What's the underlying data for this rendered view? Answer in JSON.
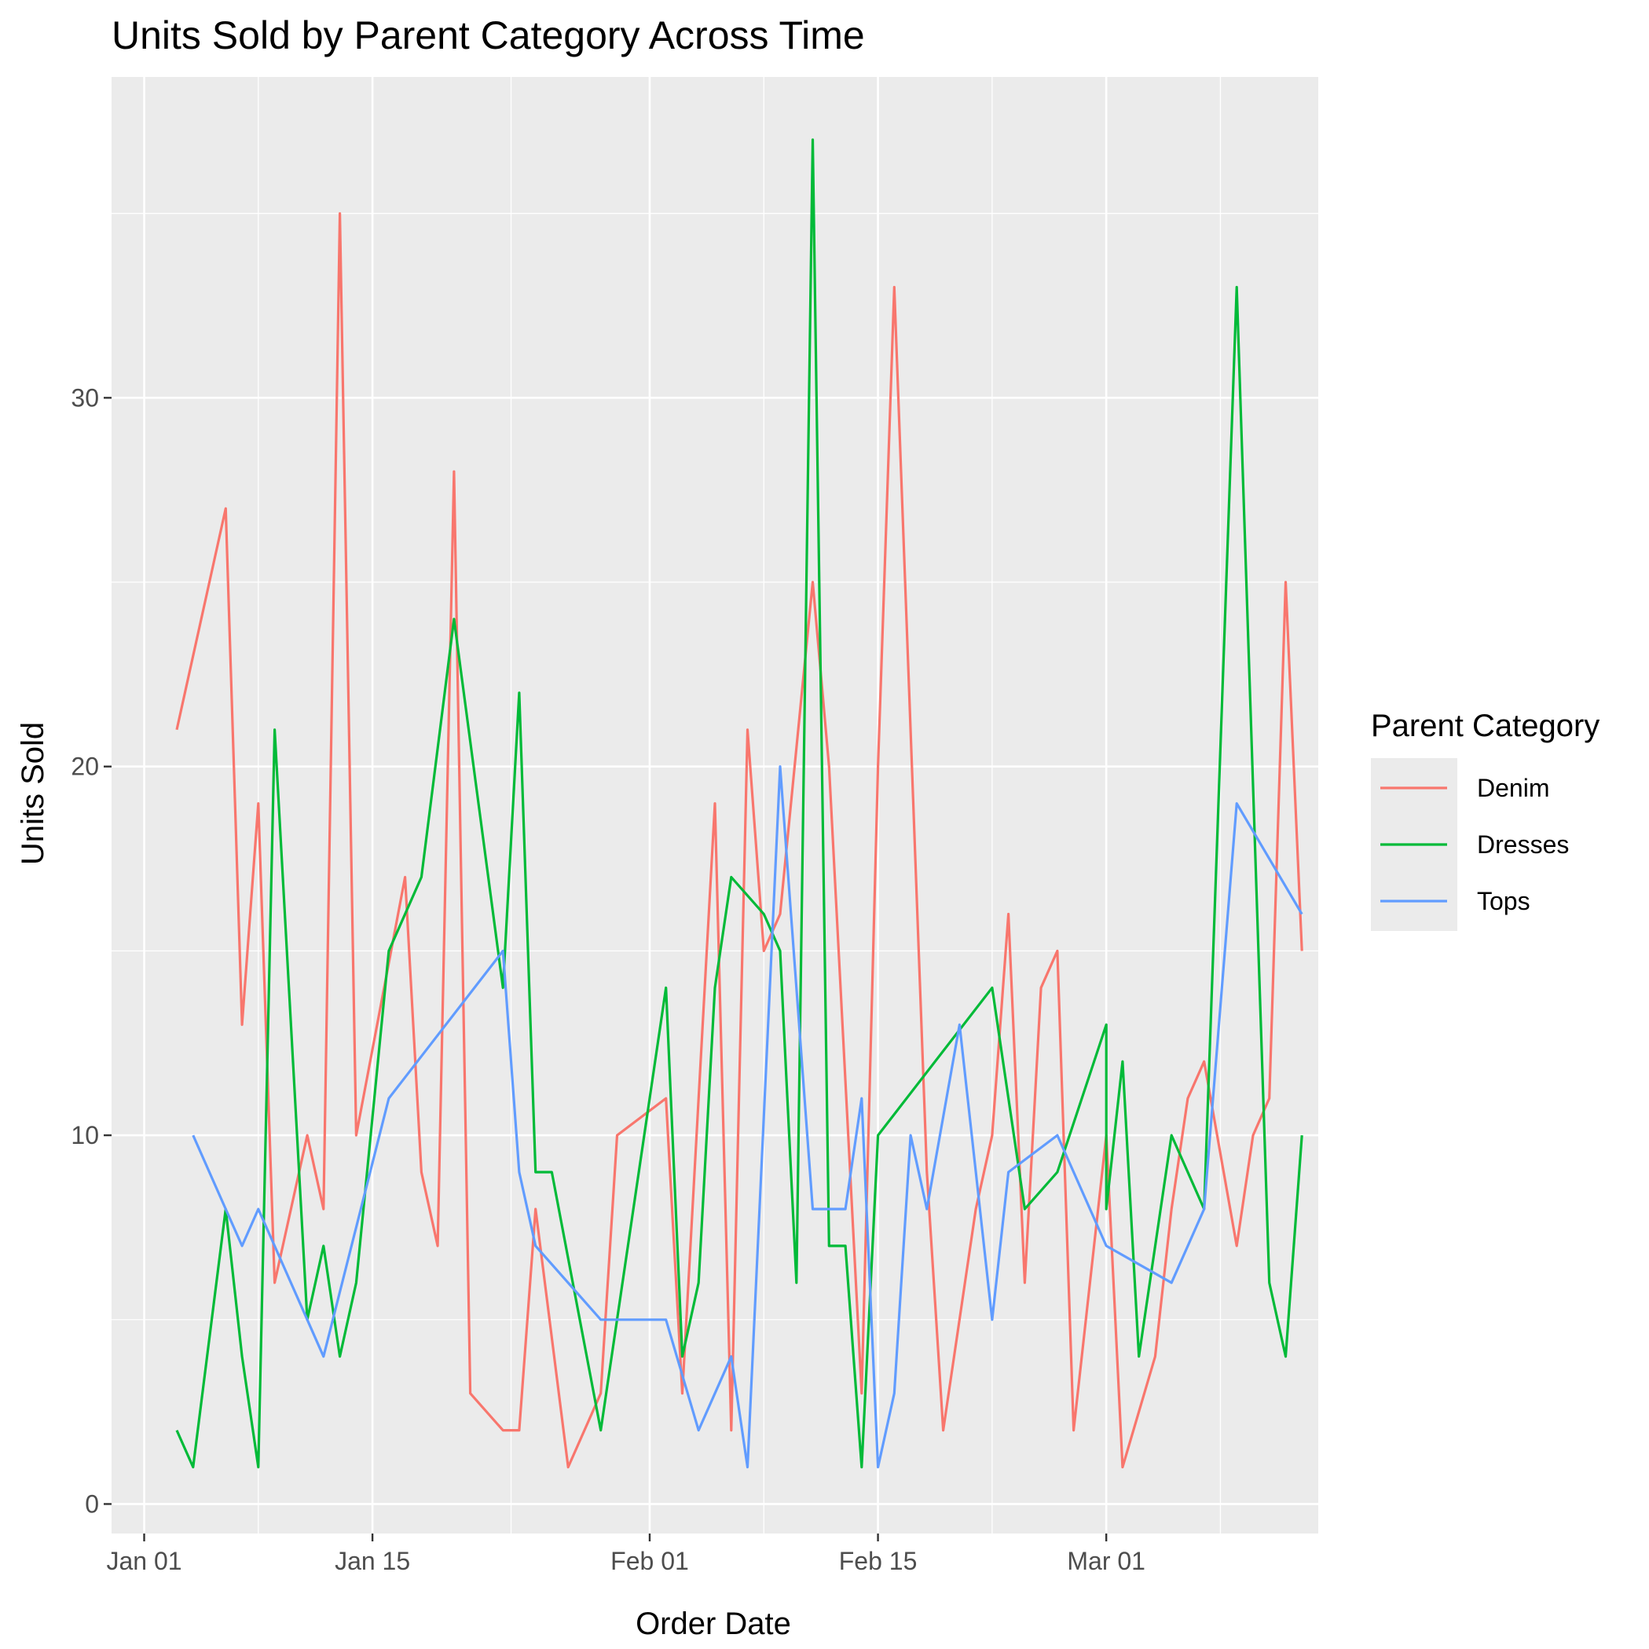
{
  "chart_data": {
    "type": "line",
    "title": "Units Sold by Parent Category Across Time",
    "xlabel": "Order Date",
    "ylabel": "Units Sold",
    "x_ticks": [
      {
        "date": "2023-01-01",
        "label": "Jan 01"
      },
      {
        "date": "2023-01-15",
        "label": "Jan 15"
      },
      {
        "date": "2023-02-01",
        "label": "Feb 01"
      },
      {
        "date": "2023-02-15",
        "label": "Feb 15"
      },
      {
        "date": "2023-03-01",
        "label": "Mar 01"
      }
    ],
    "y_ticks": [
      0,
      10,
      20,
      30
    ],
    "xlim": [
      "2022-12-30",
      "2023-03-14"
    ],
    "ylim": [
      -0.8,
      38.7
    ],
    "grid": true,
    "legend": {
      "title": "Parent Category",
      "position": "right"
    },
    "series": [
      {
        "name": "Denim",
        "color": "#F8766D",
        "points": [
          [
            "2023-01-03",
            21
          ],
          [
            "2023-01-06",
            27
          ],
          [
            "2023-01-07",
            13
          ],
          [
            "2023-01-08",
            19
          ],
          [
            "2023-01-09",
            6
          ],
          [
            "2023-01-11",
            10
          ],
          [
            "2023-01-12",
            8
          ],
          [
            "2023-01-13",
            35
          ],
          [
            "2023-01-14",
            10
          ],
          [
            "2023-01-17",
            17
          ],
          [
            "2023-01-18",
            9
          ],
          [
            "2023-01-19",
            7
          ],
          [
            "2023-01-20",
            28
          ],
          [
            "2023-01-21",
            3
          ],
          [
            "2023-01-23",
            2
          ],
          [
            "2023-01-24",
            2
          ],
          [
            "2023-01-25",
            8
          ],
          [
            "2023-01-27",
            1
          ],
          [
            "2023-01-29",
            3
          ],
          [
            "2023-01-30",
            10
          ],
          [
            "2023-02-02",
            11
          ],
          [
            "2023-02-03",
            3
          ],
          [
            "2023-02-05",
            19
          ],
          [
            "2023-02-06",
            2
          ],
          [
            "2023-02-07",
            21
          ],
          [
            "2023-02-08",
            15
          ],
          [
            "2023-02-09",
            16
          ],
          [
            "2023-02-11",
            25
          ],
          [
            "2023-02-12",
            20
          ],
          [
            "2023-02-14",
            3
          ],
          [
            "2023-02-15",
            20
          ],
          [
            "2023-02-16",
            33
          ],
          [
            "2023-02-18",
            9
          ],
          [
            "2023-02-19",
            2
          ],
          [
            "2023-02-21",
            8
          ],
          [
            "2023-02-22",
            10
          ],
          [
            "2023-02-23",
            16
          ],
          [
            "2023-02-24",
            6
          ],
          [
            "2023-02-25",
            14
          ],
          [
            "2023-02-26",
            15
          ],
          [
            "2023-02-27",
            2
          ],
          [
            "2023-02-28",
            6
          ],
          [
            "2023-03-01",
            10
          ],
          [
            "2023-03-02",
            1
          ],
          [
            "2023-03-04",
            4
          ],
          [
            "2023-03-05",
            8
          ],
          [
            "2023-03-06",
            11
          ],
          [
            "2023-03-07",
            12
          ],
          [
            "2023-03-09",
            7
          ],
          [
            "2023-03-10",
            10
          ],
          [
            "2023-03-11",
            11
          ],
          [
            "2023-03-12",
            25
          ],
          [
            "2023-03-13",
            15
          ]
        ]
      },
      {
        "name": "Dresses",
        "color": "#00BA38",
        "points": [
          [
            "2023-01-03",
            2
          ],
          [
            "2023-01-04",
            1
          ],
          [
            "2023-01-06",
            8
          ],
          [
            "2023-01-07",
            4
          ],
          [
            "2023-01-08",
            1
          ],
          [
            "2023-01-09",
            21
          ],
          [
            "2023-01-11",
            5
          ],
          [
            "2023-01-12",
            7
          ],
          [
            "2023-01-13",
            4
          ],
          [
            "2023-01-14",
            6
          ],
          [
            "2023-01-16",
            15
          ],
          [
            "2023-01-18",
            17
          ],
          [
            "2023-01-20",
            24
          ],
          [
            "2023-01-23",
            14
          ],
          [
            "2023-01-24",
            22
          ],
          [
            "2023-01-25",
            9
          ],
          [
            "2023-01-26",
            9
          ],
          [
            "2023-01-29",
            2
          ],
          [
            "2023-02-02",
            14
          ],
          [
            "2023-02-03",
            4
          ],
          [
            "2023-02-04",
            6
          ],
          [
            "2023-02-05",
            14
          ],
          [
            "2023-02-06",
            17
          ],
          [
            "2023-02-08",
            16
          ],
          [
            "2023-02-09",
            15
          ],
          [
            "2023-02-10",
            6
          ],
          [
            "2023-02-11",
            37
          ],
          [
            "2023-02-12",
            7
          ],
          [
            "2023-02-13",
            7
          ],
          [
            "2023-02-14",
            1
          ],
          [
            "2023-02-15",
            10
          ],
          [
            "2023-02-22",
            14
          ],
          [
            "2023-02-24",
            8
          ],
          [
            "2023-02-26",
            9
          ],
          [
            "2023-02-29",
            13
          ],
          [
            "2023-03-01",
            8
          ],
          [
            "2023-03-02",
            12
          ],
          [
            "2023-03-03",
            4
          ],
          [
            "2023-03-05",
            10
          ],
          [
            "2023-03-07",
            8
          ],
          [
            "2023-03-09",
            33
          ],
          [
            "2023-03-11",
            6
          ],
          [
            "2023-03-12",
            4
          ],
          [
            "2023-03-13",
            10
          ]
        ]
      },
      {
        "name": "Tops",
        "color": "#619CFF",
        "points": [
          [
            "2023-01-04",
            10
          ],
          [
            "2023-01-06",
            8
          ],
          [
            "2023-01-07",
            7
          ],
          [
            "2023-01-08",
            8
          ],
          [
            "2023-01-11",
            5
          ],
          [
            "2023-01-12",
            4
          ],
          [
            "2023-01-16",
            11
          ],
          [
            "2023-01-23",
            15
          ],
          [
            "2023-01-24",
            9
          ],
          [
            "2023-01-25",
            7
          ],
          [
            "2023-01-29",
            5
          ],
          [
            "2023-02-01",
            5
          ],
          [
            "2023-02-02",
            5
          ],
          [
            "2023-02-04",
            2
          ],
          [
            "2023-02-06",
            4
          ],
          [
            "2023-02-07",
            1
          ],
          [
            "2023-02-09",
            20
          ],
          [
            "2023-02-11",
            8
          ],
          [
            "2023-02-13",
            8
          ],
          [
            "2023-02-14",
            11
          ],
          [
            "2023-02-15",
            1
          ],
          [
            "2023-02-16",
            3
          ],
          [
            "2023-02-17",
            10
          ],
          [
            "2023-02-18",
            8
          ],
          [
            "2023-02-20",
            13
          ],
          [
            "2023-02-22",
            5
          ],
          [
            "2023-02-23",
            9
          ],
          [
            "2023-02-26",
            10
          ],
          [
            "2023-02-29",
            7
          ],
          [
            "2023-03-05",
            6
          ],
          [
            "2023-03-07",
            8
          ],
          [
            "2023-03-09",
            19
          ],
          [
            "2023-03-13",
            16
          ]
        ]
      }
    ]
  }
}
